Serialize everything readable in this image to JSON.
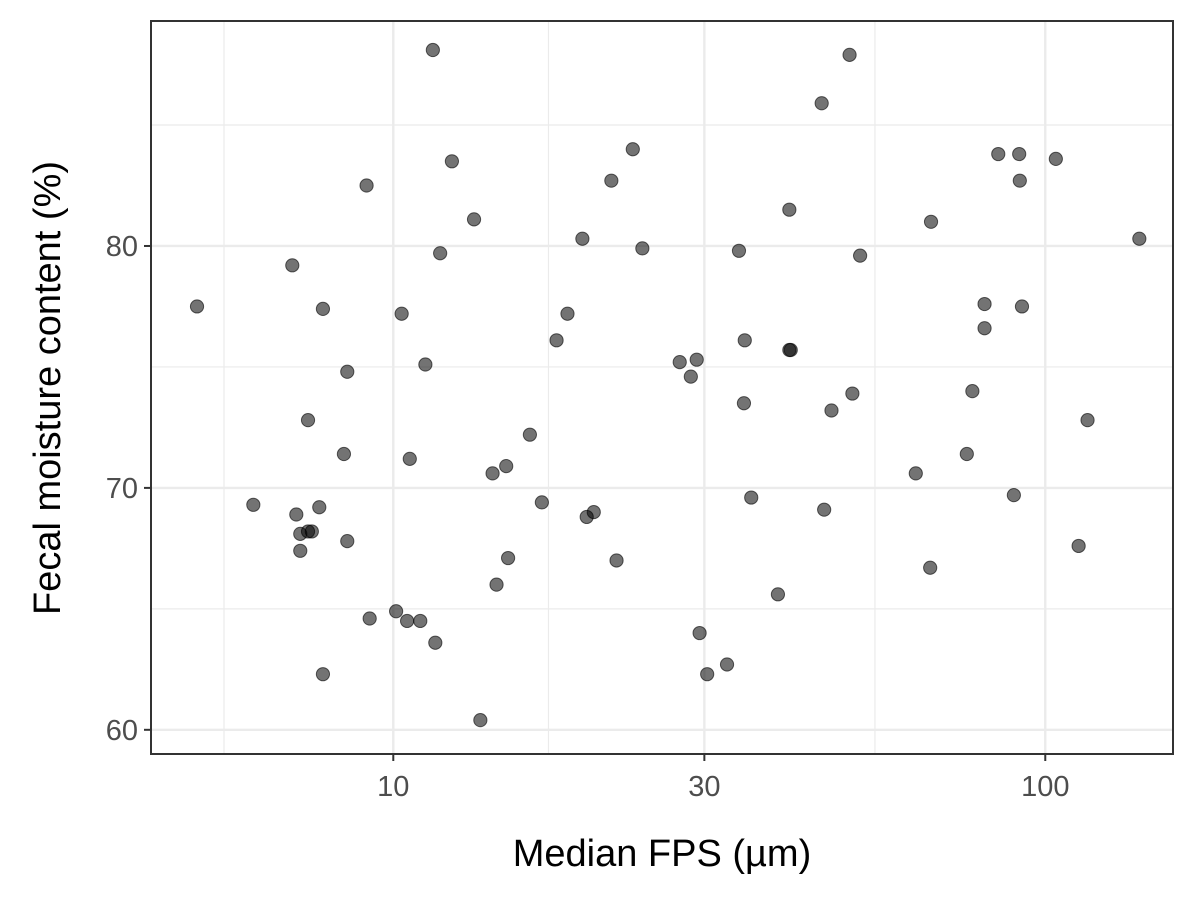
{
  "chart_data": {
    "type": "scatter",
    "title": "",
    "xlabel": "Median FPS (µm)",
    "ylabel": "Fecal moisture content (%)",
    "x_scale": "log10",
    "xlim": [
      4.25,
      157
    ],
    "ylim": [
      59.0,
      89.3
    ],
    "x_ticks": [
      10,
      30,
      100
    ],
    "x_tick_labels": [
      "10",
      "30",
      "100"
    ],
    "x_minor_ticks": [
      5.5,
      17.3,
      54.8
    ],
    "y_ticks": [
      60,
      70,
      80
    ],
    "y_tick_labels": [
      "60",
      "70",
      "80"
    ],
    "y_minor_ticks": [
      65,
      75,
      85
    ],
    "grid": true,
    "legend": "none",
    "point_color": "#000000",
    "point_opacity": 0.55,
    "points": [
      {
        "x": 5.0,
        "y": 77.5
      },
      {
        "x": 6.1,
        "y": 69.3
      },
      {
        "x": 7.0,
        "y": 79.2
      },
      {
        "x": 7.1,
        "y": 68.9
      },
      {
        "x": 7.2,
        "y": 68.1
      },
      {
        "x": 7.2,
        "y": 67.4
      },
      {
        "x": 7.4,
        "y": 72.8
      },
      {
        "x": 7.4,
        "y": 68.2
      },
      {
        "x": 7.5,
        "y": 68.2
      },
      {
        "x": 7.7,
        "y": 69.2
      },
      {
        "x": 7.8,
        "y": 77.4
      },
      {
        "x": 7.8,
        "y": 62.3
      },
      {
        "x": 8.4,
        "y": 71.4
      },
      {
        "x": 8.5,
        "y": 74.8
      },
      {
        "x": 8.5,
        "y": 67.8
      },
      {
        "x": 9.1,
        "y": 82.5
      },
      {
        "x": 9.2,
        "y": 64.6
      },
      {
        "x": 10.1,
        "y": 64.9
      },
      {
        "x": 10.3,
        "y": 77.2
      },
      {
        "x": 10.5,
        "y": 64.5
      },
      {
        "x": 10.6,
        "y": 71.2
      },
      {
        "x": 11.0,
        "y": 64.5
      },
      {
        "x": 11.2,
        "y": 75.1
      },
      {
        "x": 11.6,
        "y": 63.6
      },
      {
        "x": 11.5,
        "y": 88.1
      },
      {
        "x": 11.8,
        "y": 79.7
      },
      {
        "x": 12.3,
        "y": 83.5
      },
      {
        "x": 13.3,
        "y": 81.1
      },
      {
        "x": 13.6,
        "y": 60.4
      },
      {
        "x": 14.2,
        "y": 70.6
      },
      {
        "x": 14.4,
        "y": 66.0
      },
      {
        "x": 14.9,
        "y": 70.9
      },
      {
        "x": 15.0,
        "y": 67.1
      },
      {
        "x": 16.2,
        "y": 72.2
      },
      {
        "x": 16.9,
        "y": 69.4
      },
      {
        "x": 17.8,
        "y": 76.1
      },
      {
        "x": 18.5,
        "y": 77.2
      },
      {
        "x": 19.5,
        "y": 80.3
      },
      {
        "x": 19.8,
        "y": 68.8
      },
      {
        "x": 20.3,
        "y": 69.0
      },
      {
        "x": 21.6,
        "y": 82.7
      },
      {
        "x": 22.0,
        "y": 67.0
      },
      {
        "x": 23.3,
        "y": 84.0
      },
      {
        "x": 24.1,
        "y": 79.9
      },
      {
        "x": 27.5,
        "y": 75.2
      },
      {
        "x": 28.6,
        "y": 74.6
      },
      {
        "x": 29.2,
        "y": 75.3
      },
      {
        "x": 29.5,
        "y": 64.0
      },
      {
        "x": 30.3,
        "y": 62.3
      },
      {
        "x": 32.5,
        "y": 62.7
      },
      {
        "x": 33.9,
        "y": 79.8
      },
      {
        "x": 34.6,
        "y": 76.1
      },
      {
        "x": 34.5,
        "y": 73.5
      },
      {
        "x": 35.4,
        "y": 69.6
      },
      {
        "x": 38.9,
        "y": 65.6
      },
      {
        "x": 40.5,
        "y": 81.5
      },
      {
        "x": 40.5,
        "y": 75.7
      },
      {
        "x": 40.7,
        "y": 75.7
      },
      {
        "x": 45.4,
        "y": 85.9
      },
      {
        "x": 45.8,
        "y": 69.1
      },
      {
        "x": 47.0,
        "y": 73.2
      },
      {
        "x": 50.1,
        "y": 87.9
      },
      {
        "x": 50.6,
        "y": 73.9
      },
      {
        "x": 52.0,
        "y": 79.6
      },
      {
        "x": 63.3,
        "y": 70.6
      },
      {
        "x": 66.6,
        "y": 66.7
      },
      {
        "x": 66.8,
        "y": 81.0
      },
      {
        "x": 75.8,
        "y": 71.4
      },
      {
        "x": 77.3,
        "y": 74.0
      },
      {
        "x": 80.7,
        "y": 76.6
      },
      {
        "x": 80.7,
        "y": 77.6
      },
      {
        "x": 84.7,
        "y": 83.8
      },
      {
        "x": 89.5,
        "y": 69.7
      },
      {
        "x": 91.2,
        "y": 83.8
      },
      {
        "x": 91.4,
        "y": 82.7
      },
      {
        "x": 92.1,
        "y": 77.5
      },
      {
        "x": 103.8,
        "y": 83.6
      },
      {
        "x": 112.5,
        "y": 67.6
      },
      {
        "x": 116.1,
        "y": 72.8
      },
      {
        "x": 139.4,
        "y": 80.3
      }
    ]
  }
}
